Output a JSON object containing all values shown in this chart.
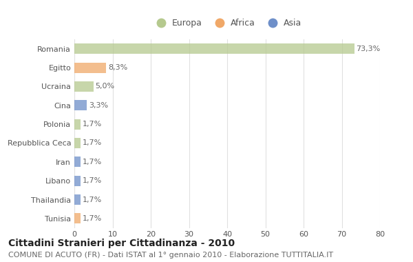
{
  "categories": [
    "Romania",
    "Egitto",
    "Ucraina",
    "Cina",
    "Polonia",
    "Repubblica Ceca",
    "Iran",
    "Libano",
    "Thailandia",
    "Tunisia"
  ],
  "values": [
    73.3,
    8.3,
    5.0,
    3.3,
    1.7,
    1.7,
    1.7,
    1.7,
    1.7,
    1.7
  ],
  "labels": [
    "73,3%",
    "8,3%",
    "5,0%",
    "3,3%",
    "1,7%",
    "1,7%",
    "1,7%",
    "1,7%",
    "1,7%",
    "1,7%"
  ],
  "colors": [
    "#b5c98e",
    "#f0a868",
    "#b5c98e",
    "#6e8fc9",
    "#b5c98e",
    "#b5c98e",
    "#6e8fc9",
    "#6e8fc9",
    "#6e8fc9",
    "#f0a868"
  ],
  "legend_labels": [
    "Europa",
    "Africa",
    "Asia"
  ],
  "legend_colors": [
    "#b5c98e",
    "#f0a868",
    "#6e8fc9"
  ],
  "xlim": [
    0,
    80
  ],
  "xticks": [
    0,
    10,
    20,
    30,
    40,
    50,
    60,
    70,
    80
  ],
  "title": "Cittadini Stranieri per Cittadinanza - 2010",
  "subtitle": "COMUNE DI ACUTO (FR) - Dati ISTAT al 1° gennaio 2010 - Elaborazione TUTTITALIA.IT",
  "background_color": "#ffffff",
  "grid_color": "#e0e0e0",
  "bar_height": 0.55,
  "title_fontsize": 10,
  "subtitle_fontsize": 8,
  "label_fontsize": 8,
  "tick_fontsize": 8,
  "legend_fontsize": 9
}
